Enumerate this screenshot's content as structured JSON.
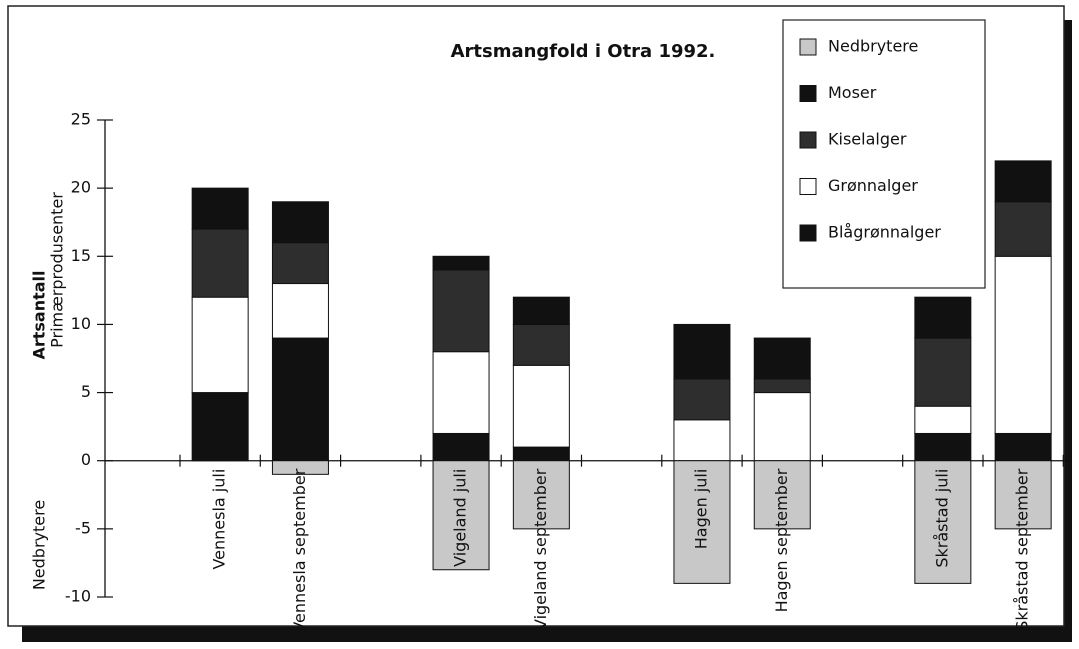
{
  "chart_data": {
    "type": "stacked_bar",
    "title": "Artsmangfold i Otra 1992.",
    "ylabel": "Artsantall",
    "ylabel_upper": "Primærprodusenter",
    "ylabel_lower": "Nedbrytere",
    "categories": [
      "Vennesla juli",
      "Vennesla september",
      null,
      "Vigeland juli",
      "Vigeland september",
      null,
      "Hagen juli",
      "Hagen september",
      null,
      "Skråstad juli",
      "Skråstad september"
    ],
    "series": [
      {
        "name": "Nedbrytere",
        "color": "#c8c8c8",
        "values": [
          0,
          -1,
          null,
          -8,
          -5,
          null,
          -9,
          -5,
          null,
          -9,
          -5
        ]
      },
      {
        "name": "Moser",
        "color": "#111111",
        "values": [
          3,
          3,
          null,
          1,
          2,
          null,
          4,
          3,
          null,
          3,
          3
        ]
      },
      {
        "name": "Kiselalger",
        "color": "#2e2e2e",
        "values": [
          5,
          3,
          null,
          6,
          3,
          null,
          3,
          1,
          null,
          5,
          4
        ]
      },
      {
        "name": "Grønnalger",
        "color": "#ffffff",
        "values": [
          7,
          4,
          null,
          6,
          6,
          null,
          3,
          5,
          null,
          2,
          13
        ]
      },
      {
        "name": "Blågrønnalger",
        "color": "#111111",
        "values": [
          5,
          9,
          null,
          2,
          1,
          null,
          0,
          0,
          null,
          2,
          2
        ]
      }
    ],
    "stack_order": [
      "Blågrønnalger",
      "Grønnalger",
      "Kiselalger",
      "Moser",
      "Nedbrytere"
    ],
    "ylim": [
      -10,
      25
    ],
    "yticks": [
      -10,
      -5,
      0,
      5,
      10,
      15,
      20,
      25
    ]
  }
}
